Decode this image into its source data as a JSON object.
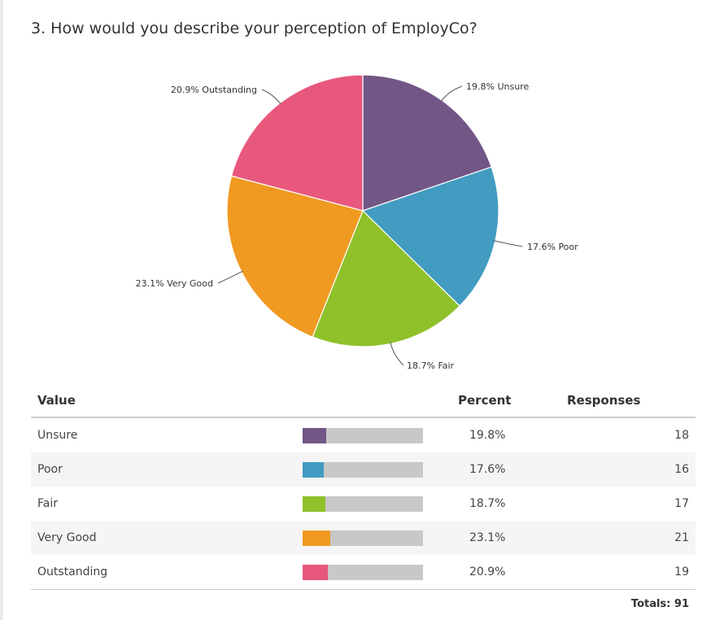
{
  "question": {
    "title": "3. How would you describe your perception of EmployCo?"
  },
  "table": {
    "headers": {
      "value": "Value",
      "percent": "Percent",
      "responses": "Responses"
    },
    "rows": [
      {
        "value": "Unsure",
        "percent": "19.8%",
        "responses": "18",
        "fraction": 0.198,
        "color": "#725686"
      },
      {
        "value": "Poor",
        "percent": "17.6%",
        "responses": "16",
        "fraction": 0.176,
        "color": "#429bc0"
      },
      {
        "value": "Fair",
        "percent": "18.7%",
        "responses": "17",
        "fraction": 0.187,
        "color": "#8fc12a"
      },
      {
        "value": "Very Good",
        "percent": "23.1%",
        "responses": "21",
        "fraction": 0.231,
        "color": "#f09a21"
      },
      {
        "value": "Outstanding",
        "percent": "20.9%",
        "responses": "19",
        "fraction": 0.209,
        "color": "#e8587d"
      }
    ],
    "totals": "Totals: 91"
  },
  "chart_data": {
    "type": "pie",
    "title": "3. How would you describe your perception of EmployCo?",
    "categories": [
      "Unsure",
      "Poor",
      "Fair",
      "Very Good",
      "Outstanding"
    ],
    "values": [
      19.8,
      17.6,
      18.7,
      23.1,
      20.9
    ],
    "responses": [
      18,
      16,
      17,
      21,
      19
    ],
    "labels": [
      "19.8% Unsure",
      "17.6% Poor",
      "18.7% Fair",
      "23.1% Very Good",
      "20.9% Outstanding"
    ],
    "colors": [
      "#725686",
      "#429bc0",
      "#8fc12a",
      "#f09a21",
      "#e8587d"
    ],
    "start": "12 o'clock",
    "direction": "clockwise"
  }
}
